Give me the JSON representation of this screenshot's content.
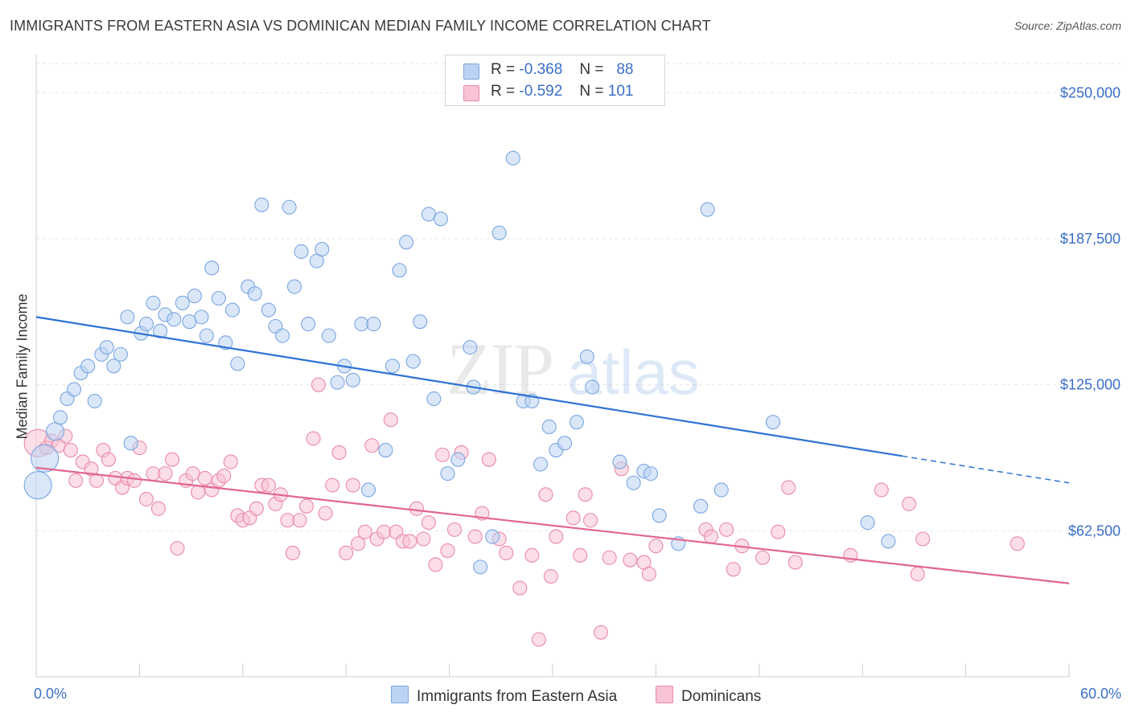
{
  "header": {
    "title": "IMMIGRANTS FROM EASTERN ASIA VS DOMINICAN MEDIAN FAMILY INCOME CORRELATION CHART",
    "source": "Source: ZipAtlas.com"
  },
  "legend": {
    "blue": {
      "r_label": "R =",
      "r_value": "-0.368",
      "n_label": "N =",
      "n_value": "88"
    },
    "pink": {
      "r_label": "R =",
      "r_value": "-0.592",
      "n_label": "N =",
      "n_value": "101"
    }
  },
  "watermark": {
    "zip": "ZIP",
    "atlas": "atlas"
  },
  "bottom_legend": {
    "blue_label": "Immigrants from Eastern Asia",
    "pink_label": "Dominicans"
  },
  "colors": {
    "blue_fill": "#bcd4f4",
    "blue_stroke": "#7aa6e0",
    "blue_line": "#2f72d4",
    "pink_fill": "#f8c3d3",
    "pink_stroke": "#e98aa9",
    "pink_line": "#e2668f",
    "axis_text": "#3a6fc8",
    "grid": "#e6e6e6"
  },
  "chart_data": {
    "type": "scatter",
    "title": "IMMIGRANTS FROM EASTERN ASIA VS DOMINICAN MEDIAN FAMILY INCOME CORRELATION CHART",
    "xlabel": "",
    "ylabel": "Median Family Income",
    "xlim": [
      0,
      60
    ],
    "ylim": [
      0,
      262500
    ],
    "x_tick_labels": [
      "0.0%",
      "60.0%"
    ],
    "y_ticks": [
      62500,
      125000,
      187500,
      250000
    ],
    "y_tick_labels": [
      "$62,500",
      "$125,000",
      "$187,500",
      "$250,000"
    ],
    "grid": true,
    "series": [
      {
        "name": "Immigrants from Eastern Asia",
        "color": "blue",
        "trend": {
          "x0": 0,
          "y0": 154000,
          "x1": 50.3,
          "y1": 94500,
          "x_dash_end": 60,
          "y_dash_end": 83000
        },
        "points": [
          [
            0.1,
            82000,
            2
          ],
          [
            0.5,
            93500,
            2
          ],
          [
            1.1,
            105000,
            1.3
          ],
          [
            1.4,
            111000,
            1
          ],
          [
            1.8,
            119000,
            1
          ],
          [
            2.2,
            123000,
            1
          ],
          [
            2.6,
            130000,
            1
          ],
          [
            3.0,
            133000,
            1
          ],
          [
            3.4,
            118000,
            1
          ],
          [
            3.8,
            138000,
            1
          ],
          [
            4.1,
            141000,
            1
          ],
          [
            4.5,
            133000,
            1
          ],
          [
            4.9,
            138000,
            1
          ],
          [
            5.3,
            154000,
            1
          ],
          [
            5.5,
            100000,
            1
          ],
          [
            6.1,
            147000,
            1
          ],
          [
            6.4,
            151000,
            1
          ],
          [
            6.8,
            160000,
            1
          ],
          [
            7.2,
            148000,
            1
          ],
          [
            7.5,
            155000,
            1
          ],
          [
            8.0,
            153000,
            1
          ],
          [
            8.5,
            160000,
            1
          ],
          [
            8.9,
            152000,
            1
          ],
          [
            9.2,
            163000,
            1
          ],
          [
            9.6,
            154000,
            1
          ],
          [
            9.9,
            146000,
            1
          ],
          [
            10.2,
            175000,
            1
          ],
          [
            10.6,
            162000,
            1
          ],
          [
            11.0,
            143000,
            1
          ],
          [
            11.4,
            157000,
            1
          ],
          [
            11.7,
            134000,
            1
          ],
          [
            12.3,
            167000,
            1
          ],
          [
            12.7,
            164000,
            1
          ],
          [
            13.1,
            202000,
            1
          ],
          [
            13.5,
            157000,
            1
          ],
          [
            13.9,
            150000,
            1
          ],
          [
            14.3,
            146000,
            1
          ],
          [
            14.7,
            201000,
            1
          ],
          [
            15.0,
            167000,
            1
          ],
          [
            15.4,
            182000,
            1
          ],
          [
            15.8,
            151000,
            1
          ],
          [
            16.3,
            178000,
            1
          ],
          [
            16.6,
            183000,
            1
          ],
          [
            17.0,
            146000,
            1
          ],
          [
            17.5,
            126000,
            1
          ],
          [
            17.9,
            133000,
            1
          ],
          [
            18.4,
            127000,
            1
          ],
          [
            18.9,
            151000,
            1
          ],
          [
            19.3,
            80000,
            1
          ],
          [
            19.6,
            151000,
            1
          ],
          [
            20.3,
            97000,
            1
          ],
          [
            20.7,
            133000,
            1
          ],
          [
            21.1,
            174000,
            1
          ],
          [
            21.5,
            186000,
            1
          ],
          [
            21.9,
            135000,
            1
          ],
          [
            22.3,
            152000,
            1
          ],
          [
            22.8,
            198000,
            1
          ],
          [
            23.1,
            119000,
            1
          ],
          [
            23.5,
            196000,
            1
          ],
          [
            23.9,
            87000,
            1
          ],
          [
            24.5,
            93000,
            1
          ],
          [
            25.2,
            141000,
            1
          ],
          [
            25.4,
            124000,
            1
          ],
          [
            25.8,
            47000,
            1
          ],
          [
            26.5,
            60000,
            1
          ],
          [
            26.9,
            190000,
            1
          ],
          [
            27.7,
            222000,
            1
          ],
          [
            28.3,
            118000,
            1
          ],
          [
            28.8,
            118000,
            1
          ],
          [
            29.3,
            91000,
            1
          ],
          [
            29.8,
            107000,
            1
          ],
          [
            30.2,
            97000,
            1
          ],
          [
            30.7,
            100000,
            1
          ],
          [
            31.4,
            109000,
            1
          ],
          [
            32.0,
            137000,
            1
          ],
          [
            32.3,
            124000,
            1
          ],
          [
            33.9,
            92000,
            1
          ],
          [
            34.7,
            83000,
            1
          ],
          [
            35.3,
            88000,
            1
          ],
          [
            35.7,
            87000,
            1
          ],
          [
            36.2,
            69000,
            1
          ],
          [
            37.3,
            57000,
            1
          ],
          [
            38.6,
            73000,
            1
          ],
          [
            39.0,
            200000,
            1
          ],
          [
            39.8,
            80000,
            1
          ],
          [
            42.8,
            109000,
            1
          ],
          [
            48.3,
            66000,
            1
          ],
          [
            49.5,
            58000,
            1
          ]
        ]
      },
      {
        "name": "Dominicans",
        "color": "pink",
        "trend": {
          "x0": 0,
          "y0": 89500,
          "x1": 60,
          "y1": 40000
        },
        "points": [
          [
            0.1,
            100000,
            2
          ],
          [
            0.6,
            98000,
            1
          ],
          [
            0.9,
            101000,
            1
          ],
          [
            1.3,
            99000,
            1
          ],
          [
            1.7,
            103000,
            1
          ],
          [
            2.0,
            97000,
            1
          ],
          [
            2.3,
            84000,
            1
          ],
          [
            2.7,
            92000,
            1
          ],
          [
            3.2,
            89000,
            1
          ],
          [
            3.5,
            84000,
            1
          ],
          [
            3.9,
            97000,
            1
          ],
          [
            4.2,
            93000,
            1
          ],
          [
            4.6,
            85000,
            1
          ],
          [
            5.0,
            81000,
            1
          ],
          [
            5.3,
            85000,
            1
          ],
          [
            5.7,
            84000,
            1
          ],
          [
            6.0,
            98000,
            1
          ],
          [
            6.4,
            76000,
            1
          ],
          [
            6.8,
            87000,
            1
          ],
          [
            7.1,
            72000,
            1
          ],
          [
            7.5,
            87000,
            1
          ],
          [
            7.9,
            93000,
            1
          ],
          [
            8.2,
            55000,
            1
          ],
          [
            8.7,
            84000,
            1
          ],
          [
            9.1,
            87000,
            1
          ],
          [
            9.4,
            79000,
            1
          ],
          [
            9.8,
            85000,
            1
          ],
          [
            10.2,
            80000,
            1
          ],
          [
            10.6,
            84000,
            1
          ],
          [
            10.9,
            86000,
            1
          ],
          [
            11.3,
            92000,
            1
          ],
          [
            11.7,
            69000,
            1
          ],
          [
            12.0,
            67000,
            1
          ],
          [
            12.4,
            68000,
            1
          ],
          [
            12.8,
            72000,
            1
          ],
          [
            13.1,
            82000,
            1
          ],
          [
            13.5,
            82000,
            1
          ],
          [
            13.9,
            74000,
            1
          ],
          [
            14.2,
            78000,
            1
          ],
          [
            14.6,
            67000,
            1
          ],
          [
            14.9,
            53000,
            1
          ],
          [
            15.3,
            67000,
            1
          ],
          [
            15.7,
            73000,
            1
          ],
          [
            16.1,
            102000,
            1
          ],
          [
            16.4,
            125000,
            1
          ],
          [
            16.8,
            70000,
            1
          ],
          [
            17.2,
            82000,
            1
          ],
          [
            17.6,
            96000,
            1
          ],
          [
            18.0,
            53000,
            1
          ],
          [
            18.4,
            82000,
            1
          ],
          [
            18.7,
            57000,
            1
          ],
          [
            19.1,
            62000,
            1
          ],
          [
            19.5,
            99000,
            1
          ],
          [
            19.8,
            59000,
            1
          ],
          [
            20.2,
            62000,
            1
          ],
          [
            20.6,
            110000,
            1
          ],
          [
            20.9,
            62000,
            1
          ],
          [
            21.3,
            58000,
            1
          ],
          [
            21.7,
            58000,
            1
          ],
          [
            22.1,
            72000,
            1
          ],
          [
            22.5,
            59000,
            1
          ],
          [
            22.8,
            66000,
            1
          ],
          [
            23.2,
            48000,
            1
          ],
          [
            23.6,
            95000,
            1
          ],
          [
            23.9,
            54000,
            1
          ],
          [
            24.3,
            63000,
            1
          ],
          [
            24.7,
            96000,
            1
          ],
          [
            25.5,
            60000,
            1
          ],
          [
            25.9,
            70000,
            1
          ],
          [
            26.3,
            93000,
            1
          ],
          [
            26.9,
            59000,
            1
          ],
          [
            27.3,
            53000,
            1
          ],
          [
            28.1,
            38000,
            1
          ],
          [
            28.8,
            52000,
            1
          ],
          [
            29.2,
            16000,
            1
          ],
          [
            29.6,
            78000,
            1
          ],
          [
            29.9,
            43000,
            1
          ],
          [
            30.2,
            60000,
            1
          ],
          [
            31.2,
            68000,
            1
          ],
          [
            31.6,
            52000,
            1
          ],
          [
            31.9,
            78000,
            1
          ],
          [
            32.2,
            67000,
            1
          ],
          [
            32.8,
            19000,
            1
          ],
          [
            33.3,
            51000,
            1
          ],
          [
            34.0,
            89000,
            1
          ],
          [
            34.5,
            50000,
            1
          ],
          [
            35.3,
            49000,
            1
          ],
          [
            35.6,
            44000,
            1
          ],
          [
            36.0,
            56000,
            1
          ],
          [
            38.9,
            63000,
            1
          ],
          [
            39.2,
            60000,
            1
          ],
          [
            40.1,
            63000,
            1
          ],
          [
            40.5,
            46000,
            1
          ],
          [
            41.0,
            56000,
            1
          ],
          [
            42.2,
            51000,
            1
          ],
          [
            43.1,
            62000,
            1
          ],
          [
            43.7,
            81000,
            1
          ],
          [
            44.1,
            49000,
            1
          ],
          [
            47.3,
            52000,
            1
          ],
          [
            49.1,
            80000,
            1
          ],
          [
            50.7,
            74000,
            1
          ],
          [
            51.2,
            44000,
            1
          ],
          [
            51.5,
            59000,
            1
          ],
          [
            57.0,
            57000,
            1
          ]
        ]
      }
    ]
  }
}
